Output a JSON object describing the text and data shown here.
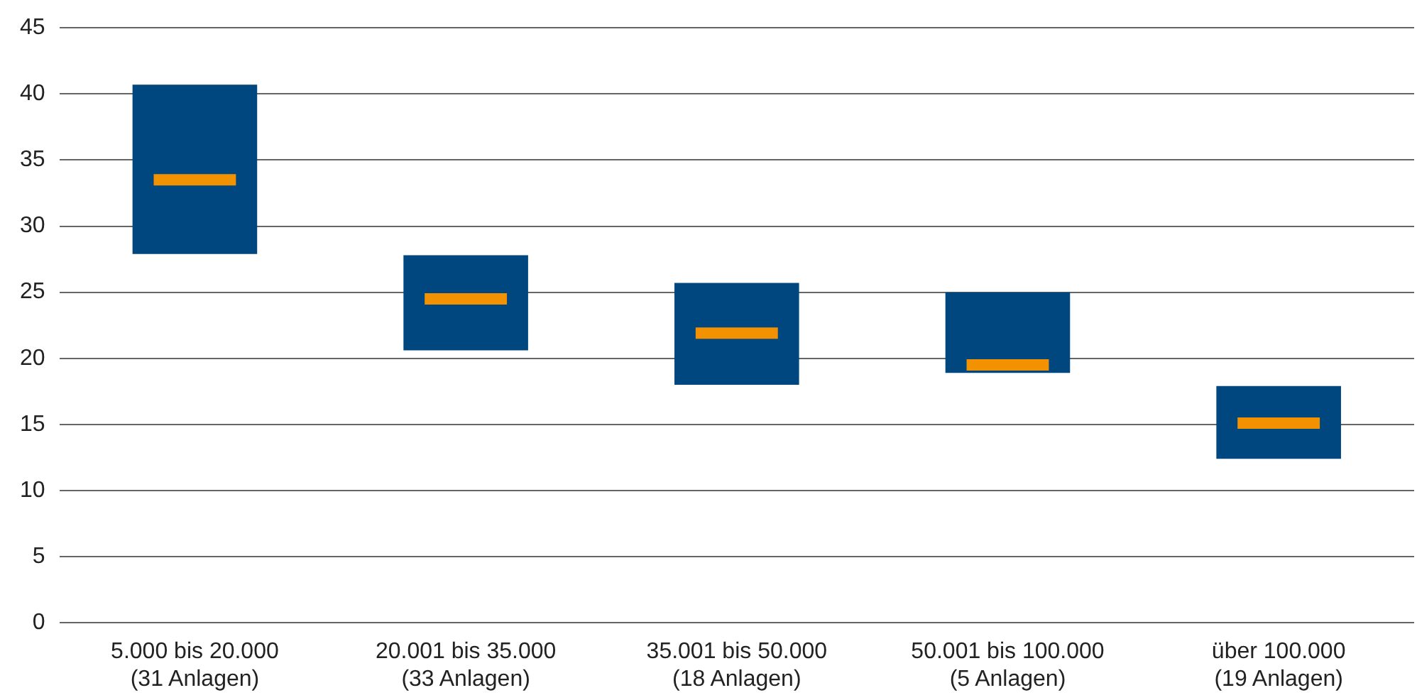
{
  "chart_data": {
    "type": "box",
    "categories": [
      "5.000 bis 20.000\n(31 Anlagen)",
      "20.001 bis 35.000\n(33 Anlagen)",
      "35.001 bis 50.000\n(18 Anlagen)",
      "50.001 bis 100.000\n(5 Anlagen)",
      "über 100.000\n(19 Anlagen)"
    ],
    "series": [
      {
        "color": "#00467f",
        "boxes": [
          {
            "low": 27.9,
            "q1": 27.9,
            "median": 33.5,
            "q3": 40.7,
            "high": 40.7
          },
          {
            "low": 20.6,
            "q1": 20.6,
            "median": 24.5,
            "q3": 27.8,
            "high": 27.8
          },
          {
            "low": 18.0,
            "q1": 18.0,
            "median": 21.9,
            "q3": 25.7,
            "high": 25.7
          },
          {
            "low": 18.9,
            "q1": 18.9,
            "median": 19.5,
            "q3": 25.0,
            "high": 25.0
          },
          {
            "low": 12.4,
            "q1": 12.4,
            "median": 15.1,
            "q3": 17.9,
            "high": 17.9
          }
        ]
      }
    ],
    "ylim": [
      0,
      45
    ],
    "yticks": [
      0,
      5,
      10,
      15,
      20,
      25,
      30,
      35,
      40,
      45
    ],
    "grid": "y",
    "legend": false
  }
}
